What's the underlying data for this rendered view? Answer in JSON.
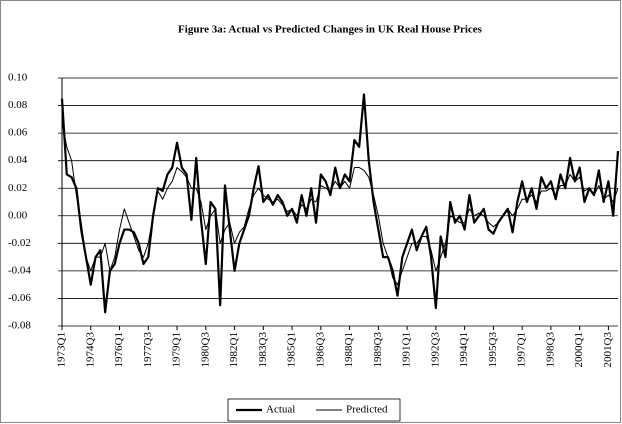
{
  "chart_data": {
    "type": "line",
    "title": "Figure 3a: Actual vs Predicted Changes in UK Real House Prices",
    "categories": [
      "1973Q1",
      null,
      null,
      null,
      null,
      null,
      "1974Q3",
      null,
      null,
      null,
      null,
      null,
      "1976Q1",
      null,
      null,
      null,
      null,
      null,
      "1977Q3",
      null,
      null,
      null,
      null,
      null,
      "1979Q1",
      null,
      null,
      null,
      null,
      null,
      "1980Q3",
      null,
      null,
      null,
      null,
      null,
      "1982Q1",
      null,
      null,
      null,
      null,
      null,
      "1983Q3",
      null,
      null,
      null,
      null,
      null,
      "1985Q1",
      null,
      null,
      null,
      null,
      null,
      "1986Q3",
      null,
      null,
      null,
      null,
      null,
      "1988Q1",
      null,
      null,
      null,
      null,
      null,
      "1989Q3",
      null,
      null,
      null,
      null,
      null,
      "1991Q1",
      null,
      null,
      null,
      null,
      null,
      "1992Q3",
      null,
      null,
      null,
      null,
      null,
      "1994Q1",
      null,
      null,
      null,
      null,
      null,
      "1995Q3",
      null,
      null,
      null,
      null,
      null,
      "1997Q1",
      null,
      null,
      null,
      null,
      null,
      "1998Q3",
      null,
      null,
      null,
      null,
      null,
      "2000Q1",
      null,
      null,
      null,
      null,
      null,
      "2001Q3",
      null,
      null
    ],
    "series": [
      {
        "name": "Actual",
        "color": "#000000",
        "width": 2.2,
        "values": [
          0.085,
          0.03,
          0.028,
          0.02,
          -0.01,
          -0.03,
          -0.05,
          -0.03,
          -0.025,
          -0.07,
          -0.04,
          -0.035,
          -0.02,
          -0.01,
          -0.01,
          -0.012,
          -0.02,
          -0.035,
          -0.03,
          0.0,
          0.02,
          0.018,
          0.03,
          0.035,
          0.053,
          0.035,
          0.03,
          -0.003,
          0.042,
          -0.003,
          -0.035,
          0.01,
          0.005,
          -0.065,
          0.022,
          -0.01,
          -0.04,
          -0.02,
          -0.01,
          0.0,
          0.02,
          0.036,
          0.01,
          0.015,
          0.008,
          0.015,
          0.01,
          0.0,
          0.005,
          -0.005,
          0.015,
          0.0,
          0.02,
          -0.005,
          0.03,
          0.025,
          0.015,
          0.035,
          0.02,
          0.03,
          0.025,
          0.055,
          0.05,
          0.088,
          0.04,
          0.01,
          -0.01,
          -0.03,
          -0.03,
          -0.04,
          -0.058,
          -0.03,
          -0.02,
          -0.01,
          -0.025,
          -0.015,
          -0.008,
          -0.03,
          -0.067,
          -0.015,
          -0.03,
          0.01,
          -0.005,
          0.0,
          -0.01,
          0.015,
          -0.005,
          0.0,
          0.005,
          -0.01,
          -0.013,
          -0.005,
          0.0,
          0.005,
          -0.012,
          0.01,
          0.025,
          0.01,
          0.02,
          0.005,
          0.028,
          0.02,
          0.025,
          0.012,
          0.03,
          0.02,
          0.042,
          0.025,
          0.035,
          0.01,
          0.02,
          0.015,
          0.033,
          0.01,
          0.025,
          0.0,
          0.047
        ]
      },
      {
        "name": "Predicted",
        "color": "#000000",
        "width": 1,
        "values": [
          0.068,
          0.05,
          0.04,
          0.015,
          -0.005,
          -0.03,
          -0.04,
          -0.03,
          -0.03,
          -0.02,
          -0.04,
          -0.03,
          -0.01,
          0.005,
          -0.005,
          -0.015,
          -0.025,
          -0.03,
          -0.02,
          0.0,
          0.018,
          0.012,
          0.02,
          0.025,
          0.035,
          0.032,
          0.028,
          0.02,
          0.02,
          0.01,
          -0.01,
          0.0,
          0.005,
          -0.02,
          -0.01,
          -0.005,
          -0.02,
          -0.012,
          -0.008,
          0.005,
          0.015,
          0.02,
          0.015,
          0.012,
          0.01,
          0.012,
          0.008,
          0.003,
          0.005,
          0.0,
          0.008,
          0.005,
          0.012,
          0.01,
          0.022,
          0.02,
          0.018,
          0.025,
          0.02,
          0.025,
          0.02,
          0.035,
          0.035,
          0.033,
          0.028,
          0.015,
          0.0,
          -0.02,
          -0.03,
          -0.045,
          -0.05,
          -0.04,
          -0.03,
          -0.02,
          -0.02,
          -0.015,
          -0.015,
          -0.025,
          -0.04,
          -0.03,
          -0.02,
          0.0,
          -0.002,
          -0.005,
          -0.005,
          0.005,
          0.0,
          0.002,
          0.0,
          -0.005,
          -0.008,
          -0.005,
          0.0,
          0.005,
          0.0,
          0.005,
          0.012,
          0.012,
          0.015,
          0.01,
          0.018,
          0.018,
          0.02,
          0.015,
          0.022,
          0.022,
          0.03,
          0.025,
          0.028,
          0.018,
          0.02,
          0.015,
          0.022,
          0.012,
          0.015,
          0.01,
          0.02
        ]
      }
    ],
    "ylim": [
      -0.08,
      0.1
    ],
    "yticks": [
      {
        "value": 0.1,
        "label": "0.10"
      },
      {
        "value": 0.08,
        "label": "0.08"
      },
      {
        "value": 0.06,
        "label": "0.06"
      },
      {
        "value": 0.04,
        "label": "0.04"
      },
      {
        "value": 0.02,
        "label": "0.02"
      },
      {
        "value": 0,
        "label": "0.00"
      },
      {
        "value": -0.02,
        "label": "-0.02"
      },
      {
        "value": -0.04,
        "label": "-0.04"
      },
      {
        "value": -0.06,
        "label": "-0.06"
      },
      {
        "value": -0.08,
        "label": "-0.08"
      }
    ],
    "grid": true
  }
}
